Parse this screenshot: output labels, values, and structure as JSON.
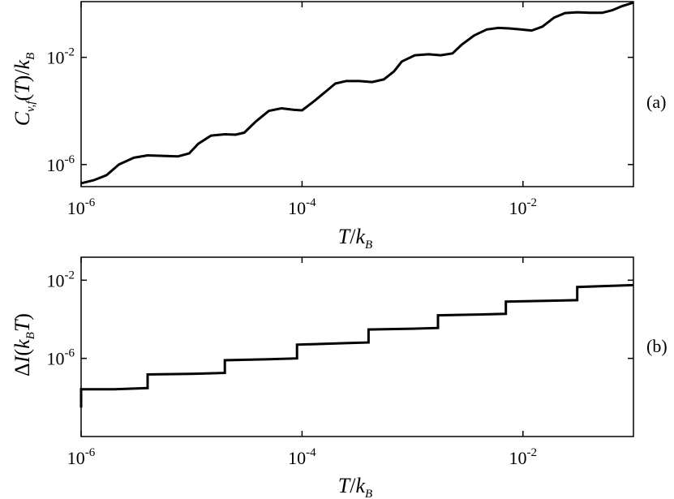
{
  "chart_data": [
    {
      "type": "line",
      "panel_label": "(a)",
      "xlabel": "T/k_B",
      "ylabel": "C_{v,f}(T)/k_B",
      "x_scale": "log",
      "y_scale": "log",
      "xlim": [
        1e-06,
        0.1
      ],
      "ylim": [
        1.5e-07,
        1.2
      ],
      "x_ticks": [
        {
          "value": 1e-06,
          "base": "10",
          "exp": "-6"
        },
        {
          "value": 0.0001,
          "base": "10",
          "exp": "-4"
        },
        {
          "value": 0.01,
          "base": "10",
          "exp": "-2"
        }
      ],
      "y_ticks": [
        {
          "value": 1e-06,
          "base": "10",
          "exp": "-6"
        },
        {
          "value": 0.01,
          "base": "10",
          "exp": "-2"
        }
      ],
      "series": [
        {
          "name": "",
          "x": [
            1e-06,
            1.3e-06,
            1.7e-06,
            2.2e-06,
            3e-06,
            4e-06,
            5.5e-06,
            7.5e-06,
            9.5e-06,
            1.15e-05,
            1.5e-05,
            2e-05,
            2.5e-05,
            3e-05,
            3.8e-05,
            5e-05,
            6.5e-05,
            8.5e-05,
            0.0001,
            0.00013,
            0.00017,
            0.0002,
            0.00025,
            0.00033,
            0.00043,
            0.00055,
            0.00068,
            0.0008,
            0.00105,
            0.0014,
            0.0018,
            0.0023,
            0.0028,
            0.0036,
            0.0047,
            0.006,
            0.0075,
            0.0095,
            0.012,
            0.015,
            0.019,
            0.024,
            0.031,
            0.04,
            0.052,
            0.065,
            0.078,
            0.1
          ],
          "y": [
            2e-07,
            2.6e-07,
            4e-07,
            1e-06,
            1.8e-06,
            2.2e-06,
            2.1e-06,
            2e-06,
            2.6e-06,
            6e-06,
            1.2e-05,
            1.35e-05,
            1.3e-05,
            1.55e-05,
            4e-05,
            0.0001,
            0.000125,
            0.00011,
            0.000105,
            0.00024,
            0.0006,
            0.00105,
            0.0013,
            0.0013,
            0.0012,
            0.0015,
            0.003,
            0.007,
            0.012,
            0.013,
            0.012,
            0.014,
            0.03,
            0.065,
            0.11,
            0.125,
            0.12,
            0.11,
            0.1,
            0.14,
            0.3,
            0.45,
            0.48,
            0.46,
            0.46,
            0.58,
            0.8,
            1.1
          ]
        }
      ]
    },
    {
      "type": "line",
      "panel_label": "(b)",
      "xlabel": "T/k_B",
      "ylabel": "ΔI(k_B T)",
      "x_scale": "log",
      "y_scale": "log",
      "xlim": [
        1e-06,
        0.1
      ],
      "ylim": [
        1e-10,
        0.15
      ],
      "x_ticks": [
        {
          "value": 1e-06,
          "base": "10",
          "exp": "-6"
        },
        {
          "value": 0.0001,
          "base": "10",
          "exp": "-4"
        },
        {
          "value": 0.01,
          "base": "10",
          "exp": "-2"
        }
      ],
      "y_ticks": [
        {
          "value": 1e-06,
          "base": "10",
          "exp": "-6"
        },
        {
          "value": 0.01,
          "base": "10",
          "exp": "-2"
        }
      ],
      "series": [
        {
          "name": "",
          "x": [
            1e-06,
            1e-06,
            2e-06,
            4e-06,
            4e-06,
            1e-05,
            2e-05,
            2e-05,
            5e-05,
            9e-05,
            9e-05,
            0.00025,
            0.0004,
            0.0004,
            0.001,
            0.0017,
            0.0017,
            0.004,
            0.007,
            0.007,
            0.02,
            0.031,
            0.031,
            0.06,
            0.1
          ],
          "y": [
            3e-09,
            2.6e-08,
            2.6e-08,
            3e-08,
            1.5e-07,
            1.6e-07,
            1.8e-07,
            8e-07,
            9e-07,
            1e-06,
            5e-06,
            6e-06,
            6.5e-06,
            3e-05,
            3.3e-05,
            3.6e-05,
            0.00016,
            0.000175,
            0.00019,
            0.0008,
            0.0009,
            0.00095,
            0.0045,
            0.0051,
            0.0056
          ]
        }
      ]
    }
  ]
}
